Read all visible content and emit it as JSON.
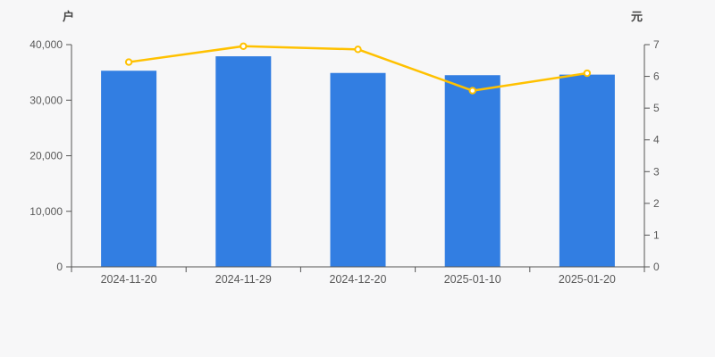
{
  "page": {
    "background": "#f7f7f8"
  },
  "chart_data": {
    "type": "bar",
    "title": "",
    "categories": [
      "2024-11-20",
      "2024-11-29",
      "2024-12-20",
      "2025-01-10",
      "2025-01-20"
    ],
    "series": [
      {
        "name": "shareholder-count-bars",
        "type": "bar",
        "axis": "left",
        "unit": "户",
        "color": "#327ee2",
        "values": [
          35300,
          37900,
          34900,
          34500,
          34600
        ]
      },
      {
        "name": "price-line",
        "type": "line",
        "axis": "right",
        "unit": "元",
        "color": "#ffc100",
        "marker_fill": "#ffffff",
        "values": [
          6.45,
          6.95,
          6.85,
          5.55,
          6.1
        ]
      }
    ],
    "left_axis": {
      "unit_label": "户",
      "min": 0,
      "max": 40000,
      "tick_interval": 10000,
      "tick_labels": [
        "0",
        "10,000",
        "20,000",
        "30,000",
        "40,000"
      ]
    },
    "right_axis": {
      "unit_label": "元",
      "min": 0,
      "max": 7,
      "tick_interval": 1,
      "tick_labels": [
        "0",
        "1",
        "2",
        "3",
        "4",
        "5",
        "6",
        "7"
      ]
    },
    "grid": false,
    "legend": null,
    "style": {
      "axis_line_color": "#555555",
      "tick_text_color": "#595959",
      "tick_font_size": 12,
      "category_font_size": 12.5
    }
  }
}
